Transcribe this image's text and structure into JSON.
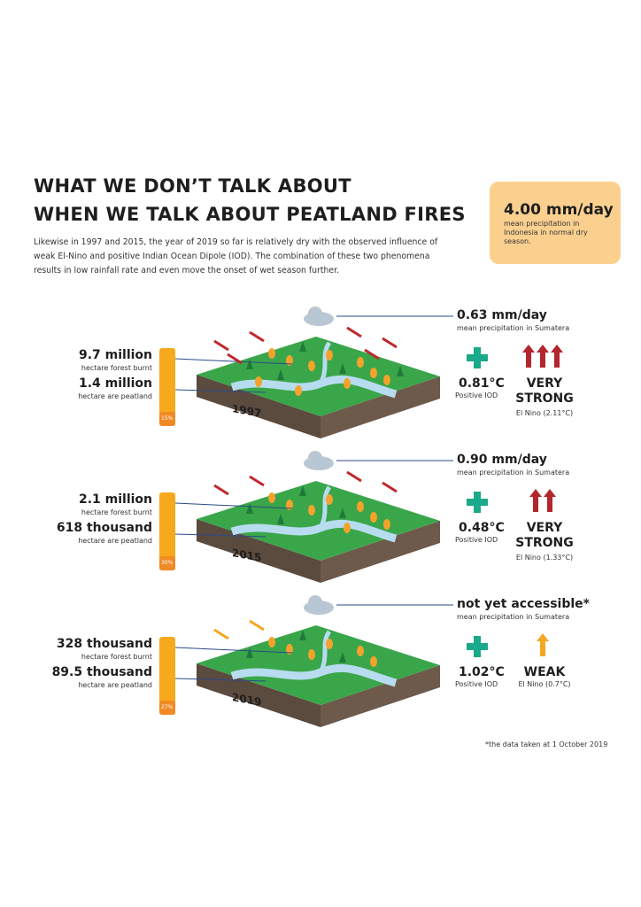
{
  "header": {
    "title_lines": [
      "WHAT WE DON’T TALK ABOUT",
      "WHEN WE TALK ABOUT PEATLAND FIRES"
    ],
    "intro": "Likewise in 1997 and 2015, the year of 2019 so far is relatively dry with the observed influence of weak El-Nino and positive Indian Ocean Dipole (IOD). The combination of these two phenomena results in low rainfall rate and even move the onset of wet season further."
  },
  "callout": {
    "value": "4.00 mm/day",
    "label": "mean precipitation in Indonesia in normal dry season."
  },
  "years": [
    {
      "year": "1997",
      "burnt_value": "9.7 million",
      "burnt_label": "hectare forest burnt",
      "peat_value": "1.4 million",
      "peat_label": "hectare are peatland",
      "peat_share": "15%",
      "precip_value": "0.63 mm/day",
      "precip_label": "mean precipitation in Sumatera",
      "iod_value": "0.81°C",
      "iod_label": "Positive IOD",
      "elnino_strength": "VERY STRONG",
      "elnino_label": "El Nino (2.11°C)"
    },
    {
      "year": "2015",
      "burnt_value": "2.1 million",
      "burnt_label": "hectare forest burnt",
      "peat_value": "618 thousand",
      "peat_label": "hectare are peatland",
      "peat_share": "30%",
      "precip_value": "0.90 mm/day",
      "precip_label": "mean precipitation in Sumatera",
      "iod_value": "0.48°C",
      "iod_label": "Positive IOD",
      "elnino_strength": "VERY STRONG",
      "elnino_label": "El Nino (1.33°C)"
    },
    {
      "year": "2019",
      "burnt_value": "328 thousand",
      "burnt_label": "hectare forest burnt",
      "peat_value": "89.5 thousand",
      "peat_label": "hectare are peatland",
      "peat_share": "27%",
      "precip_value": "not yet accessible*",
      "precip_label": "mean precipitation in Sumatera",
      "iod_value": "1.02°C",
      "iod_label": "Positive IOD",
      "elnino_strength": "WEAK",
      "elnino_label": "El Nino (0.7°C)"
    }
  ],
  "footnote": "*the data taken at 1 October 2019"
}
